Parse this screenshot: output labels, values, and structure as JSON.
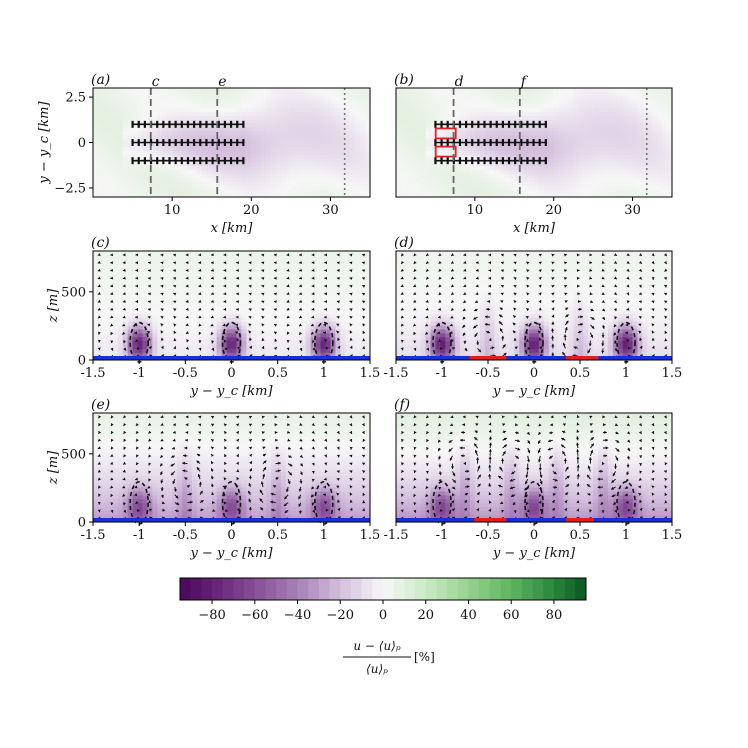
{
  "chart_data": [
    {
      "id": "a",
      "type": "heatmap",
      "panel_label": "(a)",
      "xlabel": "x [km]",
      "ylabel": "y − y_c [km]",
      "xlim": [
        0,
        35
      ],
      "ylim": [
        -3,
        3
      ],
      "xticks": [
        {
          "v": 10,
          "t": "10"
        },
        {
          "v": 20,
          "t": "20"
        },
        {
          "v": 30,
          "t": "30"
        }
      ],
      "yticks": [
        {
          "v": 2.5,
          "t": "2.5"
        },
        {
          "v": 0,
          "t": "0"
        },
        {
          "v": -2.5,
          "t": "−2.5"
        }
      ],
      "rows_y": [
        1,
        0,
        -1
      ],
      "turbine_x_range": [
        5,
        19
      ],
      "section_lines": [
        {
          "x": 7.3,
          "label": "c"
        },
        {
          "x": 15.7,
          "label": "e"
        }
      ],
      "outlet_line_x": 31.8,
      "highlighted_turbines": []
    },
    {
      "id": "b",
      "type": "heatmap",
      "panel_label": "(b)",
      "xlabel": "x [km]",
      "ylabel": "",
      "xlim": [
        0,
        35
      ],
      "ylim": [
        -3,
        3
      ],
      "xticks": [
        {
          "v": 10,
          "t": "10"
        },
        {
          "v": 20,
          "t": "20"
        },
        {
          "v": 30,
          "t": "30"
        }
      ],
      "yticks": [],
      "rows_y": [
        1,
        0,
        -1
      ],
      "turbine_x_range": [
        5,
        19
      ],
      "section_lines": [
        {
          "x": 7.3,
          "label": "d"
        },
        {
          "x": 15.7,
          "label": "f"
        }
      ],
      "outlet_line_x": 31.8,
      "highlighted_turbines": [
        {
          "x": 6.3,
          "y": 0.5
        },
        {
          "x": 6.3,
          "y": -0.5
        }
      ]
    },
    {
      "id": "c",
      "type": "heatmap",
      "panel_label": "(c)",
      "xlabel": "y − y_c [km]",
      "ylabel": "z [m]",
      "xlim": [
        -1.5,
        1.5
      ],
      "ylim": [
        0,
        800
      ],
      "xticks": [
        {
          "v": -1.5,
          "t": "-1.5"
        },
        {
          "v": -1,
          "t": "-1"
        },
        {
          "v": -0.5,
          "t": "-0.5"
        },
        {
          "v": 0,
          "t": "0"
        },
        {
          "v": 0.5,
          "t": "0.5"
        },
        {
          "v": 1,
          "t": "1"
        },
        {
          "v": 1.5,
          "t": "1.5"
        }
      ],
      "yticks": [
        {
          "v": 0,
          "t": "0"
        },
        {
          "v": 500,
          "t": "500"
        }
      ],
      "wake_centers_y": [
        -1,
        0,
        1
      ],
      "wake_strength": 75,
      "wake_contour_height_m": 130,
      "ambient_deficit": 6,
      "ambient_height_m": 280,
      "upper_deficit": -5,
      "roll_cells": [],
      "red_segments": []
    },
    {
      "id": "d",
      "type": "heatmap",
      "panel_label": "(d)",
      "xlabel": "y − y_c [km]",
      "ylabel": "",
      "xlim": [
        -1.5,
        1.5
      ],
      "ylim": [
        0,
        800
      ],
      "xticks": [
        {
          "v": -1.5,
          "t": "-1.5"
        },
        {
          "v": -1,
          "t": "-1"
        },
        {
          "v": -0.5,
          "t": "-0.5"
        },
        {
          "v": 0,
          "t": "0"
        },
        {
          "v": 0.5,
          "t": "0.5"
        },
        {
          "v": 1,
          "t": "1"
        },
        {
          "v": 1.5,
          "t": "1.5"
        }
      ],
      "yticks": [],
      "wake_centers_y": [
        -1,
        0,
        1
      ],
      "wake_strength": 75,
      "wake_contour_height_m": 130,
      "ambient_deficit": 10,
      "ambient_height_m": 300,
      "upper_deficit": -5,
      "roll_cells": [
        {
          "y": -0.5,
          "z": 150,
          "sign": 1
        },
        {
          "y": 0.5,
          "z": 150,
          "sign": -1
        }
      ],
      "red_segments": [
        [
          -0.7,
          -0.3
        ],
        [
          0.35,
          0.7
        ]
      ]
    },
    {
      "id": "e",
      "type": "heatmap",
      "panel_label": "(e)",
      "xlabel": "y − y_c [km]",
      "ylabel": "z [m]",
      "xlim": [
        -1.5,
        1.5
      ],
      "ylim": [
        0,
        800
      ],
      "xticks": [
        {
          "v": -1.5,
          "t": "-1.5"
        },
        {
          "v": -1,
          "t": "-1"
        },
        {
          "v": -0.5,
          "t": "-0.5"
        },
        {
          "v": 0,
          "t": "0"
        },
        {
          "v": 0.5,
          "t": "0.5"
        },
        {
          "v": 1,
          "t": "1"
        },
        {
          "v": 1.5,
          "t": "1.5"
        }
      ],
      "yticks": [
        {
          "v": 0,
          "t": "0"
        },
        {
          "v": 500,
          "t": "500"
        }
      ],
      "wake_centers_y": [
        -1,
        0,
        1
      ],
      "wake_strength": 40,
      "wake_contour_height_m": 140,
      "ambient_deficit": 32,
      "ambient_height_m": 420,
      "upper_deficit": -12,
      "roll_cells": [
        {
          "y": -0.5,
          "z": 280,
          "sign": 1
        },
        {
          "y": 0.5,
          "z": 280,
          "sign": -1
        }
      ],
      "red_segments": []
    },
    {
      "id": "f",
      "type": "heatmap",
      "panel_label": "(f)",
      "xlabel": "y − y_c [km]",
      "ylabel": "",
      "xlim": [
        -1.5,
        1.5
      ],
      "ylim": [
        0,
        800
      ],
      "xticks": [
        {
          "v": -1.5,
          "t": "-1.5"
        },
        {
          "v": -1,
          "t": "-1"
        },
        {
          "v": -0.5,
          "t": "-0.5"
        },
        {
          "v": 0,
          "t": "0"
        },
        {
          "v": 0.5,
          "t": "0.5"
        },
        {
          "v": 1,
          "t": "1"
        },
        {
          "v": 1.5,
          "t": "1.5"
        }
      ],
      "yticks": [],
      "wake_centers_y": [
        -1,
        0,
        1
      ],
      "wake_strength": 40,
      "wake_contour_height_m": 140,
      "ambient_deficit": 35,
      "ambient_height_m": 420,
      "upper_deficit": -16,
      "roll_cells": [
        {
          "y": -0.75,
          "z": 430,
          "sign": 1
        },
        {
          "y": -0.25,
          "z": 430,
          "sign": -1
        },
        {
          "y": 0.25,
          "z": 430,
          "sign": 1
        },
        {
          "y": 0.75,
          "z": 430,
          "sign": -1
        }
      ],
      "red_segments": [
        [
          -0.65,
          -0.3
        ],
        [
          0.35,
          0.65
        ]
      ]
    }
  ],
  "colorbar": {
    "min": -95,
    "max": 95,
    "ticks": [
      {
        "v": -80,
        "t": "−80"
      },
      {
        "v": -60,
        "t": "−60"
      },
      {
        "v": -40,
        "t": "−40"
      },
      {
        "v": -20,
        "t": "−20"
      },
      {
        "v": 0,
        "t": "0"
      },
      {
        "v": 20,
        "t": "20"
      },
      {
        "v": 40,
        "t": "40"
      },
      {
        "v": 60,
        "t": "60"
      },
      {
        "v": 80,
        "t": "80"
      }
    ],
    "label_numerator": "u − ⟨u⟩ₚ",
    "label_denominator": "⟨u⟩ₚ",
    "label_unit": "[%]"
  }
}
